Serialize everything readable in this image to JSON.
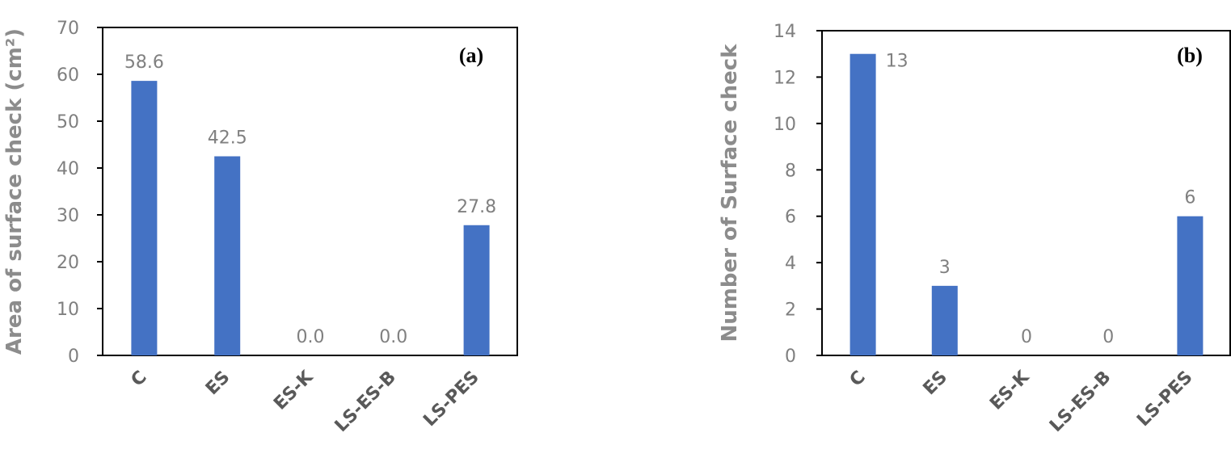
{
  "colors": {
    "bar": "#4472c4",
    "axis": "#000000",
    "tick_text": "#7f7f7f",
    "axis_label": "#8c8c8c"
  },
  "chart_data": [
    {
      "type": "bar",
      "panel_label": "(a)",
      "legend": "none",
      "grid": false,
      "categories": [
        "C",
        "ES",
        "ES-K",
        "LS-ES-B",
        "LS-PES"
      ],
      "values": [
        58.6,
        42.5,
        0.0,
        0.0,
        27.8
      ],
      "data_labels": [
        "58.6",
        "42.5",
        "0.0",
        "0.0",
        "27.8"
      ],
      "ylabel": "Area of surface check (cm²)",
      "xlabel": "",
      "ylim": [
        0,
        70
      ],
      "yticks": [
        "0",
        "10",
        "20",
        "30",
        "40",
        "50",
        "60",
        "70"
      ]
    },
    {
      "type": "bar",
      "panel_label": "(b)",
      "legend": "none",
      "grid": false,
      "categories": [
        "C",
        "ES",
        "ES-K",
        "LS-ES-B",
        "LS-PES"
      ],
      "values": [
        13,
        3,
        0,
        0,
        6
      ],
      "data_labels": [
        "13",
        "3",
        "0",
        "0",
        "6"
      ],
      "ylabel": "Number of Surface check",
      "xlabel": "",
      "ylim": [
        0,
        14
      ],
      "yticks": [
        "0",
        "2",
        "4",
        "6",
        "8",
        "10",
        "12",
        "14"
      ]
    }
  ]
}
